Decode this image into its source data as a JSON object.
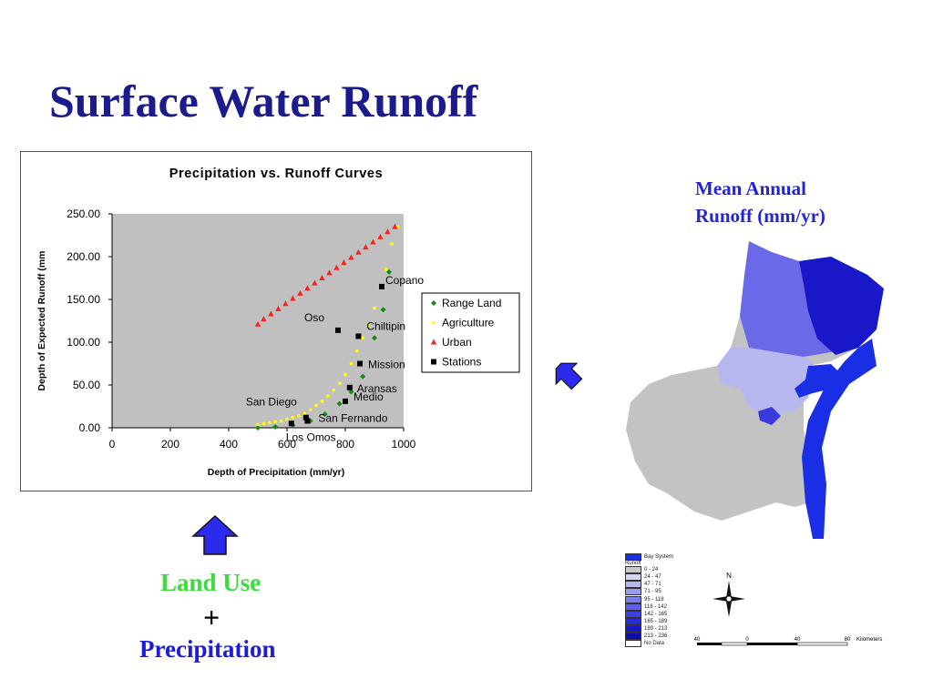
{
  "slide": {
    "title": "Surface Water Runoff",
    "map_title_line1": "Mean Annual",
    "map_title_line2": "Runoff (mm/yr)",
    "label_land_use": "Land Use",
    "label_plus": "+",
    "label_precipitation": "Precipitation"
  },
  "chart_data": {
    "type": "scatter",
    "title": "Precipitation vs. Runoff Curves",
    "xlabel": "Depth of Precipitation (mm/yr)",
    "ylabel": "Depth of Expected Runoff (mm",
    "xlim": [
      0,
      1000
    ],
    "ylim": [
      0,
      250
    ],
    "x_ticks": [
      "0",
      "200",
      "400",
      "600",
      "800",
      "1000"
    ],
    "y_ticks": [
      "0.00",
      "50.00",
      "100.00",
      "150.00",
      "200.00",
      "250.00"
    ],
    "grid": false,
    "plot_background": "#c0c0c0",
    "legend_position": "right",
    "series": [
      {
        "name": "Range Land",
        "marker": "diamond",
        "color": "#138a13",
        "x": [
          500,
          560,
          620,
          680,
          730,
          780,
          820,
          860,
          900,
          930,
          950
        ],
        "y": [
          0,
          1,
          3,
          8,
          16,
          28,
          42,
          60,
          105,
          138,
          182
        ]
      },
      {
        "name": "Agriculture",
        "marker": "circle",
        "color": "#ffff00",
        "x": [
          500,
          520,
          540,
          560,
          580,
          600,
          620,
          640,
          660,
          680,
          700,
          720,
          740,
          760,
          780,
          800,
          820,
          840,
          860,
          880,
          900,
          920,
          940,
          960,
          980
        ],
        "y": [
          4,
          5,
          6,
          7,
          8,
          10,
          12,
          14,
          17,
          21,
          26,
          31,
          37,
          44,
          52,
          62,
          75,
          90,
          105,
          120,
          140,
          165,
          185,
          215,
          235
        ]
      },
      {
        "name": "Urban",
        "marker": "triangle",
        "color": "#ff2020",
        "x": [
          500,
          520,
          545,
          570,
          595,
          620,
          645,
          670,
          695,
          720,
          745,
          770,
          795,
          820,
          845,
          870,
          895,
          920,
          945,
          970
        ],
        "y": [
          121,
          127,
          133,
          139,
          145,
          151,
          157,
          163,
          169,
          175,
          181,
          187,
          193,
          199,
          205,
          211,
          217,
          223,
          229,
          235
        ]
      },
      {
        "name": "Stations",
        "marker": "square",
        "color": "#000000",
        "points": [
          {
            "label": "Copano",
            "x": 925,
            "y": 165
          },
          {
            "label": "Oso",
            "x": 775,
            "y": 114
          },
          {
            "label": "Chiltipin",
            "x": 845,
            "y": 107
          },
          {
            "label": "Mission",
            "x": 850,
            "y": 75
          },
          {
            "label": "Aransas",
            "x": 815,
            "y": 47
          },
          {
            "label": "Medio",
            "x": 800,
            "y": 31
          },
          {
            "label": "San Diego",
            "x": 665,
            "y": 12
          },
          {
            "label": "San Fernando",
            "x": 670,
            "y": 8
          },
          {
            "label": "Los Omos",
            "x": 615,
            "y": 5
          }
        ]
      }
    ]
  },
  "map_legend": {
    "header1": "Bay System",
    "header2": "Runoff",
    "classes": [
      {
        "label": "0 - 24",
        "color": "#c8c8c8"
      },
      {
        "label": "24 - 47",
        "color": "#d6d6f2"
      },
      {
        "label": "47 - 71",
        "color": "#b8b8f0"
      },
      {
        "label": "71 - 95",
        "color": "#9a9aee"
      },
      {
        "label": "95 - 118",
        "color": "#7c7cec"
      },
      {
        "label": "118 - 142",
        "color": "#5e5eea"
      },
      {
        "label": "142 - 165",
        "color": "#4040e0"
      },
      {
        "label": "165 - 189",
        "color": "#2a2ad8"
      },
      {
        "label": "189 - 213",
        "color": "#1818c8"
      },
      {
        "label": "213 - 236",
        "color": "#0c0cb0"
      },
      {
        "label": "No Data",
        "color": "#ffffff"
      }
    ],
    "bay_color": "#1a2ee6"
  },
  "compass": {
    "north_label": "N"
  },
  "scale_bar": {
    "labels": [
      "40",
      "0",
      "40",
      "80"
    ],
    "unit": "Kilometers"
  },
  "colors": {
    "title": "#1b1b8e",
    "arrow": "#2b2bf0",
    "land_use": "#3cdc3c",
    "precipitation": "#1d1dd9"
  }
}
